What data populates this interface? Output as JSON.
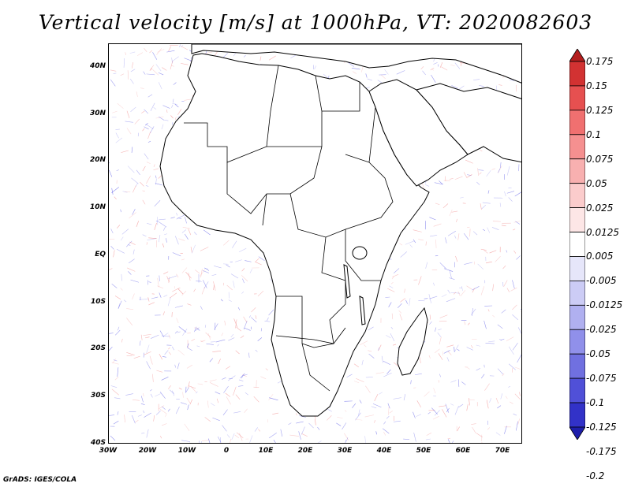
{
  "title": "Vertical velocity [m/s] at 1000hPa, VT: 2020082603",
  "credit": "GrADS: IGES/COLA",
  "map": {
    "lat_range": [
      -40,
      45
    ],
    "lon_range": [
      -30,
      75
    ],
    "lat_ticks": [
      "40N",
      "30N",
      "20N",
      "10N",
      "EQ",
      "10S",
      "20S",
      "30S",
      "40S"
    ],
    "lon_ticks": [
      "30W",
      "20W",
      "10W",
      "0",
      "10E",
      "20E",
      "30E",
      "40E",
      "50E",
      "60E",
      "70E"
    ],
    "coastline_color": "#000000",
    "land_fill": "#ffffff",
    "ascent_color": "#5a5ae6",
    "descent_color": "#f08080"
  },
  "colorbar": {
    "labels": [
      "0.175",
      "0.15",
      "0.125",
      "0.1",
      "0.075",
      "0.05",
      "0.025",
      "0.0125",
      "0.005",
      "-0.005",
      "-0.0125",
      "-0.025",
      "-0.05",
      "-0.075",
      "-0.1",
      "-0.125",
      "-0.175",
      "-0.2"
    ],
    "colors": [
      "#b41e1e",
      "#d23232",
      "#e65050",
      "#f07070",
      "#f59090",
      "#f8b0b0",
      "#fbcccc",
      "#fde6e6",
      "#ffffff",
      "#e6e6fa",
      "#ccccf5",
      "#b0b0f0",
      "#9090ea",
      "#7070e0",
      "#5050d8",
      "#3232c8",
      "#1e1eaa"
    ]
  }
}
